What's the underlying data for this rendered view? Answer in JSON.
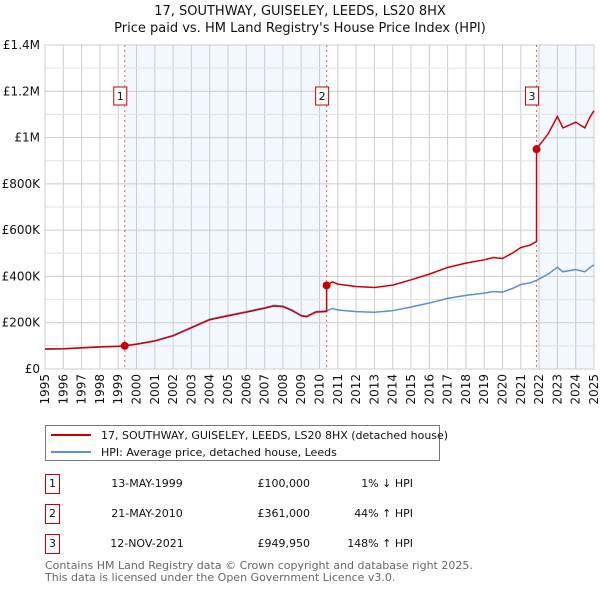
{
  "chart_data": {
    "type": "line",
    "title": "17, SOUTHWAY, GUISELEY, LEEDS, LS20 8HX",
    "subtitle": "Price paid vs. HM Land Registry's House Price Index (HPI)",
    "xlim": [
      1995,
      2025
    ],
    "ylim": [
      0,
      1400000
    ],
    "x_ticks": [
      "1995",
      "1996",
      "1997",
      "1998",
      "1999",
      "2000",
      "2001",
      "2002",
      "2003",
      "2004",
      "2005",
      "2006",
      "2007",
      "2008",
      "2009",
      "2010",
      "2011",
      "2012",
      "2013",
      "2014",
      "2015",
      "2016",
      "2017",
      "2018",
      "2019",
      "2020",
      "2021",
      "2022",
      "2023",
      "2024",
      "2025"
    ],
    "y_ticks": [
      {
        "v": 0,
        "label": "£0"
      },
      {
        "v": 200000,
        "label": "£200K"
      },
      {
        "v": 400000,
        "label": "£400K"
      },
      {
        "v": 600000,
        "label": "£600K"
      },
      {
        "v": 800000,
        "label": "£800K"
      },
      {
        "v": 1000000,
        "label": "£1M"
      },
      {
        "v": 1200000,
        "label": "£1.2M"
      },
      {
        "v": 1400000,
        "label": "£1.4M"
      }
    ],
    "grid": true,
    "series": [
      {
        "name": "HPI: Average price, detached house, Leeds",
        "color": "#5b8fd4",
        "x": [
          1995,
          1996,
          1997,
          1998,
          1999,
          1999.36,
          2000,
          2001,
          2002,
          2003,
          2004,
          2005,
          2006,
          2007,
          2007.5,
          2008,
          2008.5,
          2009,
          2009.3,
          2009.8,
          2010.39,
          2010.7,
          2011,
          2012,
          2013,
          2014,
          2015,
          2016,
          2017,
          2018,
          2019,
          2019.5,
          2020,
          2020.6,
          2021,
          2021.5,
          2021.86,
          2022.5,
          2023,
          2023.3,
          2024,
          2024.5,
          2024.8,
          2025
        ],
        "y": [
          87000,
          88000,
          92000,
          96000,
          99000,
          101000,
          108000,
          122000,
          145000,
          180000,
          215000,
          232000,
          248000,
          265000,
          275000,
          272000,
          255000,
          232000,
          228000,
          248000,
          251000,
          262000,
          255000,
          248000,
          245000,
          252000,
          268000,
          285000,
          305000,
          318000,
          328000,
          335000,
          332000,
          350000,
          365000,
          372000,
          383000,
          410000,
          440000,
          420000,
          430000,
          420000,
          440000,
          450000
        ]
      },
      {
        "name": "17, SOUTHWAY, GUISELEY, LEEDS, LS20 8HX (detached house)",
        "color": "#cc0000"
      }
    ],
    "sales": [
      {
        "id": "1",
        "x": 1999.36,
        "price": 100000,
        "date": "13-MAY-1999",
        "price_label": "£100,000",
        "hpi_label": "1% ↓ HPI"
      },
      {
        "id": "2",
        "x": 2010.39,
        "price": 361000,
        "date": "21-MAY-2010",
        "price_label": "£361,000",
        "hpi_label": "44% ↑ HPI"
      },
      {
        "id": "3",
        "x": 2021.86,
        "price": 949950,
        "date": "12-NOV-2021",
        "price_label": "£949,950",
        "hpi_label": "148% ↑ HPI"
      }
    ],
    "legend_placement": "below"
  },
  "footer": {
    "line1": "Contains HM Land Registry data © Crown copyright and database right 2025.",
    "line2": "This data is licensed under the Open Government Licence v3.0."
  }
}
